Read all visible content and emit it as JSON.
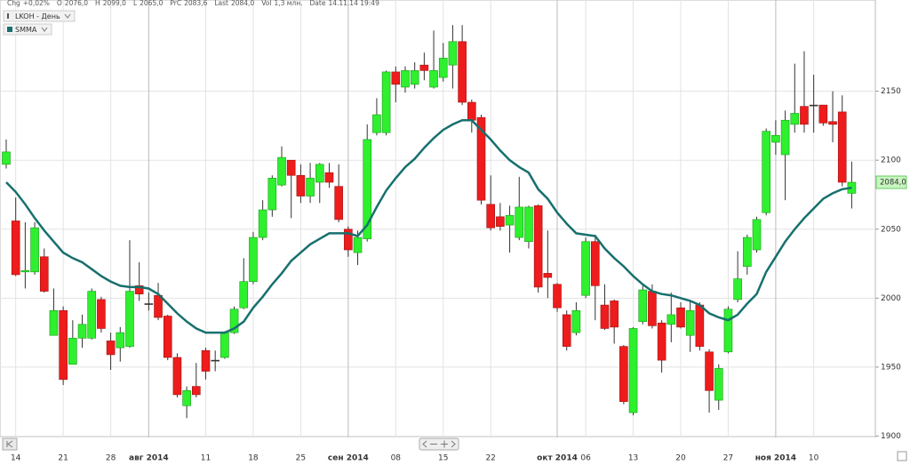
{
  "chart_data": {
    "type": "candlestick",
    "header": [
      {
        "label": "Chg",
        "value": "+0,02%"
      },
      {
        "label": "O",
        "value": "2076,0"
      },
      {
        "label": "H",
        "value": "2099,0"
      },
      {
        "label": "L",
        "value": "2065,0"
      },
      {
        "label": "PrC",
        "value": "2083,6"
      },
      {
        "label": "Last",
        "value": "2084,0"
      },
      {
        "label": "Vol",
        "value": "1,3 млн."
      },
      {
        "label": "Date",
        "value": "14.11.14 19:49"
      }
    ],
    "last_price_label": "2084,0",
    "categories": [
      null,
      "14",
      null,
      null,
      null,
      null,
      "21",
      null,
      null,
      null,
      null,
      "28",
      null,
      null,
      null,
      "авг 2014",
      null,
      null,
      null,
      null,
      null,
      "11",
      null,
      null,
      null,
      null,
      "18",
      null,
      null,
      null,
      null,
      "25",
      null,
      null,
      null,
      null,
      "сен 2014",
      null,
      null,
      null,
      null,
      "08",
      null,
      null,
      null,
      null,
      "15",
      null,
      null,
      null,
      null,
      "22",
      null,
      null,
      null,
      null,
      null,
      null,
      "окт 2014",
      null,
      null,
      "06",
      null,
      null,
      null,
      null,
      "13",
      null,
      null,
      null,
      null,
      "20",
      null,
      null,
      null,
      null,
      "27",
      null,
      null,
      null,
      null,
      "ноя 2014",
      null,
      null,
      null,
      "10",
      null,
      null,
      null,
      null
    ],
    "series": [
      {
        "name": "LKOH - День",
        "up_color": "#2ef02e",
        "down_color": "#ee1c1c",
        "open": [
          2097,
          2056,
          2019,
          2019,
          2030,
          1973,
          1991,
          1952,
          1971,
          1971,
          1999,
          1969,
          1964,
          1965,
          2009,
          1996,
          2002,
          1987,
          1957,
          1922,
          1936,
          1962,
          1955,
          1957,
          1975,
          1993,
          2012,
          2044,
          2064,
          2082,
          2100,
          2089,
          2074,
          2084,
          2091,
          2081,
          2050,
          2033,
          2043,
          2120,
          2120,
          2164,
          2153,
          2155,
          2169,
          2153,
          2160,
          2169,
          2186,
          2142,
          2131,
          2068,
          2059,
          2053,
          2044,
          2041,
          2067,
          2018,
          2010,
          1988,
          1975,
          2002,
          2041,
          1995,
          1998,
          1965,
          1917,
          1983,
          2005,
          1982,
          1981,
          1993,
          1973,
          1995,
          1961,
          1926,
          1961,
          1999,
          2023,
          2035,
          2062,
          2113,
          2104,
          2126,
          2139,
          2140,
          2140,
          2128,
          2135,
          2076
        ],
        "high": [
          2115,
          2073,
          2055,
          2055,
          2036,
          2007,
          1994,
          1984,
          1988,
          2007,
          2001,
          1975,
          1979,
          2042,
          2026,
          2004,
          2011,
          1988,
          1960,
          1936,
          1953,
          1964,
          1962,
          1976,
          1994,
          2029,
          2048,
          2071,
          2089,
          2110,
          2100,
          2097,
          2098,
          2098,
          2098,
          2097,
          2052,
          2049,
          2126,
          2145,
          2165,
          2168,
          2168,
          2171,
          2178,
          2194,
          2185,
          2198,
          2198,
          2144,
          2133,
          2089,
          2069,
          2067,
          2088,
          2067,
          2068,
          2049,
          2011,
          1991,
          1997,
          2044,
          2046,
          2010,
          1999,
          1966,
          1979,
          2009,
          2010,
          1984,
          2004,
          1997,
          1998,
          1997,
          1963,
          1952,
          1994,
          2034,
          2046,
          2059,
          2123,
          2129,
          2136,
          2170,
          2179,
          2162,
          2140,
          2150,
          2147,
          2099
        ],
        "low": [
          2094,
          2016,
          2007,
          2017,
          2004,
          1973,
          1937,
          1952,
          1964,
          1970,
          1975,
          1948,
          1954,
          1964,
          1998,
          1991,
          1984,
          1955,
          1928,
          1913,
          1928,
          1941,
          1947,
          1956,
          1974,
          1992,
          2010,
          2042,
          2059,
          2081,
          2058,
          2069,
          2069,
          2069,
          2080,
          2055,
          2030,
          2024,
          2041,
          2118,
          2118,
          2142,
          2149,
          2152,
          2158,
          2152,
          2157,
          2152,
          2140,
          2120,
          2068,
          2049,
          2049,
          2033,
          2042,
          2036,
          2004,
          2000,
          1990,
          1962,
          1973,
          2000,
          1984,
          1977,
          1967,
          1923,
          1915,
          1981,
          1978,
          1946,
          1968,
          1978,
          1961,
          1962,
          1917,
          1919,
          1960,
          1997,
          2017,
          2033,
          2060,
          2104,
          2071,
          2120,
          2120,
          2120,
          2125,
          2113,
          2081,
          2065
        ],
        "close": [
          2106,
          2017,
          2020,
          2051,
          2005,
          1991,
          1941,
          1971,
          1981,
          2005,
          1978,
          1959,
          1975,
          2005,
          2003,
          1996,
          1986,
          1957,
          1930,
          1933,
          1930,
          1947,
          1955,
          1975,
          1992,
          2012,
          2044,
          2064,
          2087,
          2102,
          2089,
          2074,
          2087,
          2097,
          2084,
          2057,
          2035,
          2044,
          2115,
          2133,
          2164,
          2155,
          2165,
          2165,
          2165,
          2165,
          2174,
          2186,
          2142,
          2129,
          2071,
          2051,
          2052,
          2060,
          2066,
          2066,
          2008,
          2015,
          1993,
          1965,
          1991,
          2041,
          2009,
          1978,
          1979,
          1925,
          1978,
          2006,
          1980,
          1955,
          1988,
          1979,
          1991,
          1965,
          1933,
          1949,
          1992,
          2014,
          2044,
          2057,
          2121,
          2118,
          2129,
          2134,
          2126,
          2140,
          2127,
          2126,
          2084,
          2084
        ]
      },
      {
        "name": "SMMA",
        "type": "line",
        "color": "#17706e",
        "values": [
          2084,
          2077,
          2068,
          2058,
          2049,
          2041,
          2033,
          2029,
          2026,
          2021,
          2016,
          2012,
          2009,
          2008,
          2008,
          2007,
          2003,
          1996,
          1989,
          1983,
          1978,
          1975,
          1975,
          1975,
          1978,
          1983,
          1993,
          2001,
          2010,
          2018,
          2027,
          2033,
          2039,
          2043,
          2047,
          2047,
          2047,
          2045,
          2053,
          2066,
          2078,
          2087,
          2095,
          2101,
          2109,
          2116,
          2122,
          2126,
          2129,
          2129,
          2122,
          2115,
          2107,
          2100,
          2095,
          2091,
          2079,
          2072,
          2062,
          2054,
          2047,
          2046,
          2045,
          2036,
          2029,
          2023,
          2016,
          2010,
          2005,
          2003,
          2002,
          2000,
          1998,
          1995,
          1989,
          1986,
          1984,
          1988,
          1996,
          2003,
          2019,
          2030,
          2041,
          2050,
          2058,
          2065,
          2072,
          2076,
          2079,
          2080
        ]
      }
    ],
    "ylim": [
      1899,
      2211
    ],
    "yticks": [
      1900,
      1950,
      2000,
      2050,
      2100,
      2150
    ],
    "grid": true
  }
}
